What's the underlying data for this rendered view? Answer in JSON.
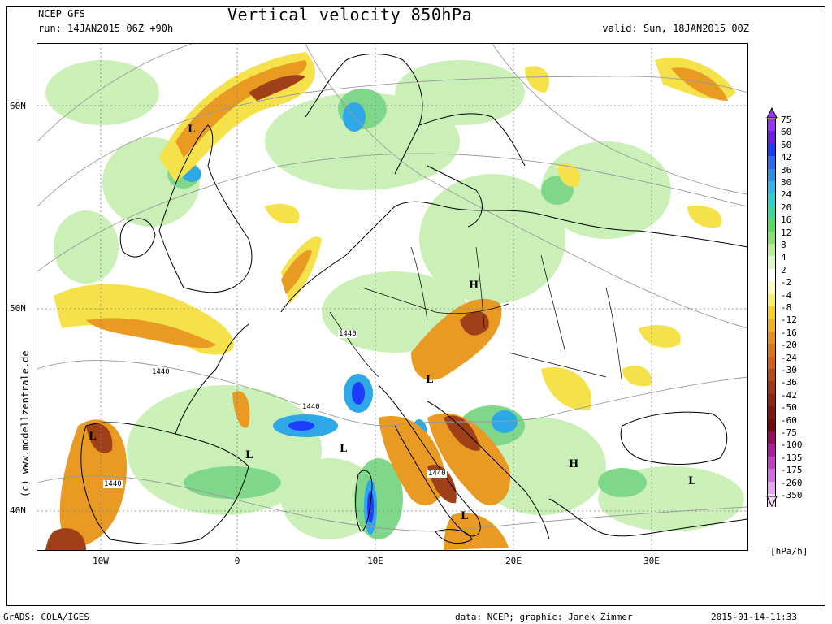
{
  "header": {
    "model": "NCEP GFS",
    "run": "run: 14JAN2015 06Z +90h",
    "title": "Vertical velocity 850hPa",
    "valid": "valid: Sun, 18JAN2015 00Z"
  },
  "axes": {
    "lat_labels": [
      "60N",
      "50N",
      "40N"
    ],
    "lon_labels": [
      "10W",
      "0",
      "10E",
      "20E",
      "30E"
    ]
  },
  "watermark": "(c) www.modellzentrale.de",
  "legend": {
    "unit": "[hPa/h]",
    "labels": [
      "75",
      "60",
      "50",
      "42",
      "36",
      "30",
      "24",
      "20",
      "16",
      "12",
      "8",
      "4",
      "2",
      "-2",
      "-4",
      "-8",
      "-12",
      "-16",
      "-20",
      "-24",
      "-30",
      "-36",
      "-42",
      "-50",
      "-60",
      "-75",
      "-100",
      "-135",
      "-175",
      "-260",
      "-350"
    ],
    "colors": [
      "#9933ff",
      "#6a1ee8",
      "#1e3cff",
      "#2a6af0",
      "#2f8fe8",
      "#33b5e8",
      "#2fd0c8",
      "#3ad99a",
      "#55dd66",
      "#88e070",
      "#b6ec9a",
      "#dcf7cc",
      "#ffffff",
      "#fbf8c8",
      "#f5f06a",
      "#f5d22a",
      "#f0b020",
      "#e8901c",
      "#dc7518",
      "#d0601a",
      "#b84818",
      "#a43616",
      "#902616",
      "#7e1612",
      "#700a10",
      "#9a0a5a",
      "#b01aa0",
      "#c040c8",
      "#d070e0",
      "#e6a8f0",
      "#f4d8f8"
    ]
  },
  "pressure_labels": [
    {
      "letter": "L"
    },
    {
      "letter": "L"
    },
    {
      "letter": "L"
    },
    {
      "letter": "L"
    },
    {
      "letter": "L"
    },
    {
      "letter": "L"
    },
    {
      "letter": "L"
    },
    {
      "letter": "H"
    },
    {
      "letter": "H"
    }
  ],
  "contour_labels": [
    "1440",
    "1440",
    "1440",
    "1440",
    "1440"
  ],
  "footer": {
    "left": "GrADS: COLA/IGES",
    "middle": "data: NCEP; graphic: Janek Zimmer",
    "right": "2015-01-14-11:33"
  }
}
